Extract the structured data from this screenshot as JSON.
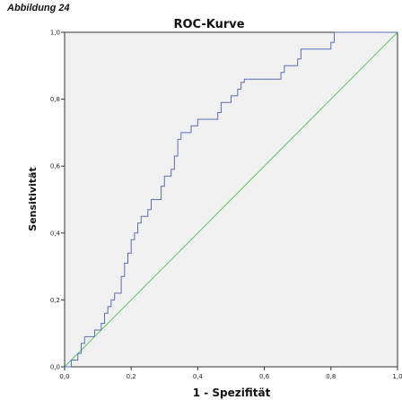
{
  "figure_label": "Abbildung 24",
  "chart_data": {
    "type": "line",
    "title": "ROC-Kurve",
    "xlabel": "1 - Spezifität",
    "ylabel": "Sensitivität",
    "xlim": [
      0,
      1
    ],
    "ylim": [
      0,
      1
    ],
    "x_ticks": [
      "0,0",
      "0,2",
      "0,4",
      "0,6",
      "0,8",
      "1,0"
    ],
    "y_ticks": [
      "0,0",
      "0,2",
      "0,4",
      "0,6",
      "0,8",
      "1,0"
    ],
    "grid": false,
    "plot_background": "#f0f0f0",
    "series": [
      {
        "color": "#5a6eb4",
        "points": [
          [
            0.0,
            0.0
          ],
          [
            0.02,
            0.0
          ],
          [
            0.02,
            0.02
          ],
          [
            0.04,
            0.02
          ],
          [
            0.04,
            0.04
          ],
          [
            0.05,
            0.04
          ],
          [
            0.05,
            0.07
          ],
          [
            0.06,
            0.07
          ],
          [
            0.06,
            0.09
          ],
          [
            0.09,
            0.09
          ],
          [
            0.09,
            0.11
          ],
          [
            0.11,
            0.11
          ],
          [
            0.11,
            0.13
          ],
          [
            0.12,
            0.13
          ],
          [
            0.12,
            0.16
          ],
          [
            0.13,
            0.16
          ],
          [
            0.13,
            0.18
          ],
          [
            0.14,
            0.18
          ],
          [
            0.14,
            0.2
          ],
          [
            0.15,
            0.2
          ],
          [
            0.15,
            0.22
          ],
          [
            0.17,
            0.22
          ],
          [
            0.17,
            0.27
          ],
          [
            0.18,
            0.27
          ],
          [
            0.18,
            0.29
          ],
          [
            0.18,
            0.31
          ],
          [
            0.19,
            0.31
          ],
          [
            0.19,
            0.34
          ],
          [
            0.2,
            0.34
          ],
          [
            0.2,
            0.38
          ],
          [
            0.21,
            0.38
          ],
          [
            0.21,
            0.4
          ],
          [
            0.22,
            0.4
          ],
          [
            0.22,
            0.43
          ],
          [
            0.23,
            0.43
          ],
          [
            0.23,
            0.45
          ],
          [
            0.25,
            0.45
          ],
          [
            0.25,
            0.47
          ],
          [
            0.26,
            0.47
          ],
          [
            0.26,
            0.5
          ],
          [
            0.29,
            0.5
          ],
          [
            0.29,
            0.54
          ],
          [
            0.3,
            0.54
          ],
          [
            0.3,
            0.57
          ],
          [
            0.32,
            0.57
          ],
          [
            0.32,
            0.59
          ],
          [
            0.33,
            0.59
          ],
          [
            0.33,
            0.63
          ],
          [
            0.34,
            0.63
          ],
          [
            0.34,
            0.68
          ],
          [
            0.35,
            0.68
          ],
          [
            0.35,
            0.7
          ],
          [
            0.38,
            0.7
          ],
          [
            0.38,
            0.72
          ],
          [
            0.4,
            0.72
          ],
          [
            0.4,
            0.74
          ],
          [
            0.46,
            0.74
          ],
          [
            0.46,
            0.76
          ],
          [
            0.47,
            0.76
          ],
          [
            0.47,
            0.79
          ],
          [
            0.5,
            0.79
          ],
          [
            0.5,
            0.81
          ],
          [
            0.52,
            0.81
          ],
          [
            0.52,
            0.83
          ],
          [
            0.53,
            0.83
          ],
          [
            0.53,
            0.85
          ],
          [
            0.54,
            0.85
          ],
          [
            0.54,
            0.86
          ],
          [
            0.65,
            0.86
          ],
          [
            0.65,
            0.88
          ],
          [
            0.66,
            0.88
          ],
          [
            0.66,
            0.9
          ],
          [
            0.7,
            0.9
          ],
          [
            0.7,
            0.92
          ],
          [
            0.71,
            0.92
          ],
          [
            0.71,
            0.95
          ],
          [
            0.8,
            0.95
          ],
          [
            0.8,
            0.97
          ],
          [
            0.81,
            0.97
          ],
          [
            0.81,
            1.0
          ],
          [
            1.0,
            1.0
          ]
        ]
      },
      {
        "color": "#5cc85c",
        "points": [
          [
            0,
            0
          ],
          [
            1,
            1
          ]
        ]
      }
    ]
  }
}
